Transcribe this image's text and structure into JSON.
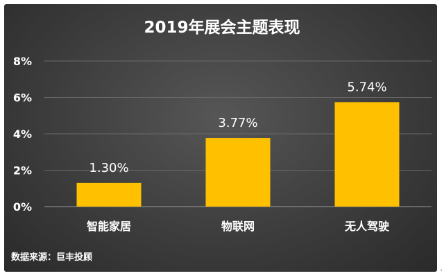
{
  "chart_data": {
    "type": "bar",
    "title": "2019年展会主题表现",
    "categories": [
      "智能家居",
      "物联网",
      "无人驾驶"
    ],
    "values": [
      1.3,
      3.77,
      5.74
    ],
    "value_labels": [
      "1.30%",
      "3.77%",
      "5.74%"
    ],
    "ylim": [
      0,
      8
    ],
    "yticks": [
      0,
      2,
      4,
      6,
      8
    ],
    "ytick_labels": [
      "0%",
      "2%",
      "4%",
      "6%",
      "8%"
    ],
    "xlabel": "",
    "ylabel": "",
    "grid": true,
    "legend": "none",
    "bar_color": "#FFC000",
    "background_color": "#3d3d3d",
    "text_color": "#FFFFFF",
    "source": "数据来源：巨丰投顾"
  },
  "corner_icon": "chevron-left-icon"
}
